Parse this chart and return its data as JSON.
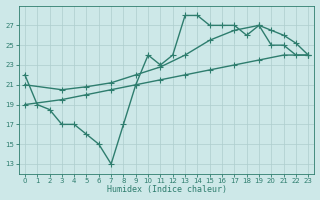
{
  "line1_x": [
    0,
    1,
    2,
    3,
    4,
    5,
    6,
    7,
    8,
    9,
    10,
    11,
    12,
    13,
    14,
    15,
    16,
    17,
    18,
    19,
    20,
    21,
    22,
    23
  ],
  "line1_y": [
    22,
    19,
    18.5,
    17,
    17,
    16,
    15,
    13,
    17,
    21,
    24,
    23,
    24,
    28,
    28,
    27,
    27,
    27,
    26,
    27,
    25,
    25,
    24,
    24
  ],
  "line2_x": [
    0,
    3,
    5,
    7,
    9,
    11,
    13,
    15,
    17,
    19,
    21,
    23
  ],
  "line2_y": [
    19,
    19.5,
    20,
    20.5,
    21,
    21.5,
    22,
    22.5,
    23,
    23.5,
    24,
    24
  ],
  "line3_x": [
    0,
    3,
    5,
    7,
    9,
    11,
    13,
    15,
    17,
    19,
    20,
    21,
    22,
    23
  ],
  "line3_y": [
    21,
    20.5,
    20.8,
    21.2,
    22,
    22.8,
    24,
    25.5,
    26.5,
    27,
    26.5,
    26,
    25.2,
    24
  ],
  "line_color": "#2e7d6e",
  "bg_color": "#cde8e8",
  "grid_color": "#aecece",
  "xlabel": "Humidex (Indice chaleur)",
  "xlim": [
    -0.5,
    23.5
  ],
  "ylim": [
    12,
    29
  ],
  "yticks": [
    13,
    15,
    17,
    19,
    21,
    23,
    25,
    27
  ],
  "xticks": [
    0,
    1,
    2,
    3,
    4,
    5,
    6,
    7,
    8,
    9,
    10,
    11,
    12,
    13,
    14,
    15,
    16,
    17,
    18,
    19,
    20,
    21,
    22,
    23
  ],
  "marker": "+",
  "marker_size": 4,
  "line_width": 1.0
}
